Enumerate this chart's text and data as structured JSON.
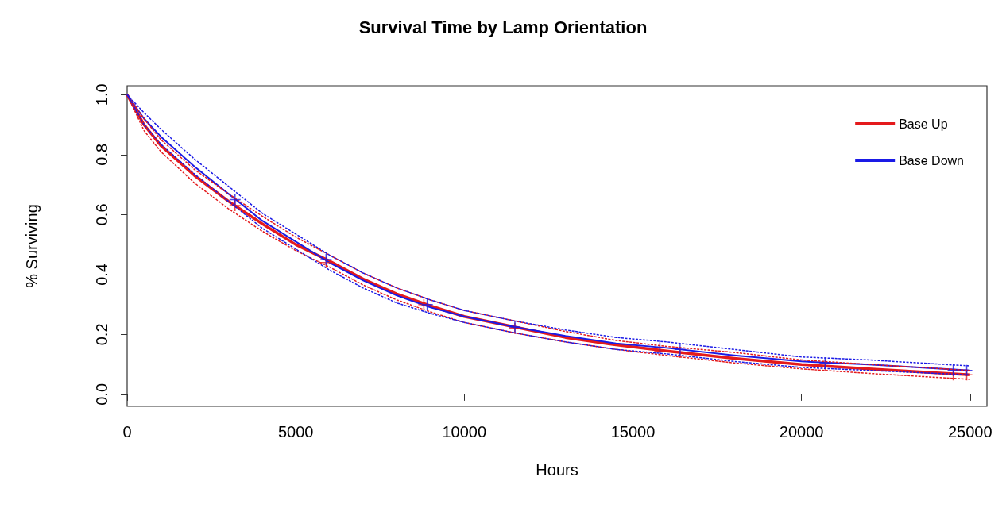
{
  "chart_data": {
    "type": "line",
    "title": "Survival Time by Lamp Orientation",
    "xlabel": "Hours",
    "ylabel": "% Surviving",
    "xlim": [
      0,
      25500
    ],
    "xticks": [
      0,
      5000,
      10000,
      15000,
      20000,
      25000
    ],
    "ylim": [
      -0.04,
      1.03
    ],
    "yticks": [
      {
        "value": 0,
        "label": "0.0"
      },
      {
        "value": 0.2,
        "label": "0.2"
      },
      {
        "value": 0.4,
        "label": "0.4"
      },
      {
        "value": 0.6,
        "label": "0.6"
      },
      {
        "value": 0.8,
        "label": "0.8"
      },
      {
        "value": 1,
        "label": "1.0"
      }
    ],
    "grid": false,
    "legend": "top right",
    "marker": "none",
    "line_style": "solid",
    "series": [
      {
        "name": "Base Up",
        "color": "#e41a1c",
        "x": [
          0,
          500,
          1000,
          2000,
          3000,
          4000,
          5000,
          6000,
          7000,
          8000,
          9000,
          10000,
          11500,
          13000,
          14500,
          16000,
          18000,
          20000,
          22000,
          25000
        ],
        "values": [
          1,
          0.9,
          0.83,
          0.73,
          0.645,
          0.57,
          0.5,
          0.445,
          0.385,
          0.335,
          0.295,
          0.26,
          0.225,
          0.19,
          0.165,
          0.145,
          0.12,
          0.1,
          0.085,
          0.065
        ]
      },
      {
        "name": "Base Down",
        "color": "#1a1ae6",
        "x": [
          0,
          500,
          1000,
          2000,
          3000,
          4000,
          5000,
          6000,
          7000,
          8000,
          9000,
          10000,
          11500,
          13000,
          14500,
          16000,
          18000,
          20000,
          22000,
          25000
        ],
        "values": [
          1,
          0.92,
          0.86,
          0.76,
          0.67,
          0.58,
          0.51,
          0.44,
          0.38,
          0.33,
          0.29,
          0.26,
          0.225,
          0.195,
          0.17,
          0.155,
          0.13,
          0.11,
          0.1,
          0.08
        ]
      },
      {
        "line_style": "dashed",
        "color": "#e41a1c",
        "x": [
          0,
          500,
          1000,
          2000,
          3000,
          4000,
          5000,
          6000,
          7000,
          8000,
          9000,
          10000,
          11500,
          13000,
          14500,
          16000,
          18000,
          20000,
          22000,
          25000
        ],
        "values": [
          1,
          0.88,
          0.81,
          0.705,
          0.62,
          0.545,
          0.48,
          0.425,
          0.365,
          0.315,
          0.275,
          0.24,
          0.205,
          0.175,
          0.15,
          0.13,
          0.105,
          0.085,
          0.07,
          0.05
        ]
      },
      {
        "line_style": "dashed",
        "color": "#e41a1c",
        "x": [
          0,
          500,
          1000,
          2000,
          3000,
          4000,
          5000,
          6000,
          7000,
          8000,
          9000,
          10000,
          11500,
          13000,
          14500,
          16000,
          18000,
          20000,
          22000,
          25000
        ],
        "values": [
          1,
          0.92,
          0.85,
          0.75,
          0.67,
          0.595,
          0.525,
          0.465,
          0.405,
          0.355,
          0.315,
          0.28,
          0.245,
          0.21,
          0.18,
          0.16,
          0.14,
          0.115,
          0.1,
          0.08
        ]
      },
      {
        "line_style": "dashed",
        "color": "#1a1ae6",
        "x": [
          0,
          500,
          1000,
          2000,
          3000,
          4000,
          5000,
          6000,
          7000,
          8000,
          9000,
          10000,
          11500,
          13000,
          14500,
          16000,
          18000,
          20000,
          22000,
          25000
        ],
        "values": [
          1,
          0.9,
          0.835,
          0.735,
          0.645,
          0.555,
          0.485,
          0.415,
          0.355,
          0.305,
          0.27,
          0.24,
          0.205,
          0.175,
          0.15,
          0.135,
          0.11,
          0.09,
          0.08,
          0.065
        ]
      },
      {
        "line_style": "dashed",
        "color": "#1a1ae6",
        "x": [
          0,
          500,
          1000,
          2000,
          3000,
          4000,
          5000,
          6000,
          7000,
          8000,
          9000,
          10000,
          11500,
          13000,
          14500,
          16000,
          18000,
          20000,
          22000,
          25000
        ],
        "values": [
          1,
          0.94,
          0.885,
          0.785,
          0.695,
          0.605,
          0.535,
          0.465,
          0.405,
          0.355,
          0.315,
          0.28,
          0.245,
          0.215,
          0.19,
          0.175,
          0.15,
          0.125,
          0.115,
          0.095
        ]
      },
      {
        "type": "scatter",
        "marker": "cross",
        "color": "#e41a1c",
        "x": [
          3200,
          5900,
          8800,
          11500,
          15800,
          16400,
          20700,
          24500,
          24900
        ],
        "values": [
          0.63,
          0.44,
          0.3,
          0.22,
          0.145,
          0.14,
          0.095,
          0.065,
          0.065
        ]
      },
      {
        "type": "scatter",
        "marker": "cross",
        "color": "#1a1ae6",
        "x": [
          3200,
          5900,
          8900,
          11500,
          15800,
          16400,
          20700,
          24500,
          24900
        ],
        "values": [
          0.65,
          0.45,
          0.3,
          0.225,
          0.155,
          0.15,
          0.105,
          0.08,
          0.08
        ]
      }
    ]
  }
}
